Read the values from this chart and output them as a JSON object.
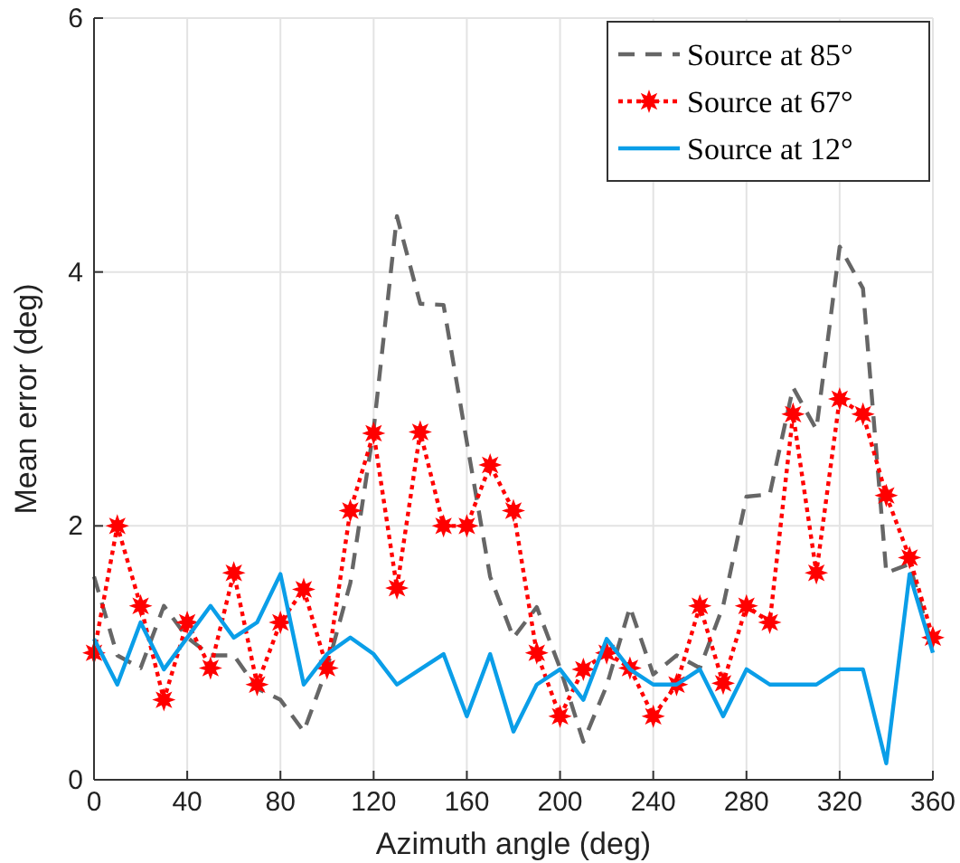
{
  "chart_data": {
    "type": "line",
    "xlabel": "Azimuth angle (deg)",
    "ylabel": "Mean error (deg)",
    "x": [
      0,
      10,
      20,
      30,
      40,
      50,
      60,
      70,
      80,
      90,
      100,
      110,
      120,
      130,
      140,
      150,
      160,
      170,
      180,
      190,
      200,
      210,
      220,
      230,
      240,
      250,
      260,
      270,
      280,
      290,
      300,
      310,
      320,
      330,
      340,
      350,
      360
    ],
    "xlim": [
      0,
      360
    ],
    "xticks": [
      0,
      40,
      80,
      120,
      160,
      200,
      240,
      280,
      320,
      360
    ],
    "ylim": [
      0,
      6
    ],
    "yticks": [
      0,
      2,
      4,
      6
    ],
    "grid": true,
    "legend": "top right",
    "series": [
      {
        "name": "Source at 85°",
        "color": "#666666",
        "line_style": "dashed",
        "marker": "none",
        "values": [
          1.6,
          0.98,
          0.88,
          1.37,
          1.12,
          0.98,
          0.98,
          0.72,
          0.63,
          0.38,
          0.88,
          1.55,
          2.76,
          4.44,
          3.75,
          3.74,
          2.66,
          1.6,
          1.12,
          1.36,
          0.88,
          0.3,
          0.74,
          1.36,
          0.83,
          0.98,
          0.88,
          1.37,
          2.23,
          2.25,
          3.09,
          2.76,
          4.2,
          3.87,
          1.63,
          1.7,
          1.03
        ]
      },
      {
        "name": "Source at 67°",
        "color": "#ff0000",
        "line_style": "dotted",
        "marker": "star",
        "values": [
          1.0,
          2.0,
          1.37,
          0.63,
          1.24,
          0.88,
          1.63,
          0.75,
          1.24,
          1.5,
          0.88,
          2.12,
          2.73,
          1.51,
          2.74,
          2.0,
          2.0,
          2.48,
          2.12,
          1.0,
          0.5,
          0.87,
          1.0,
          0.88,
          0.5,
          0.75,
          1.37,
          0.76,
          1.37,
          1.24,
          2.88,
          1.63,
          3.0,
          2.88,
          2.24,
          1.75,
          1.12
        ]
      },
      {
        "name": "Source at 12°",
        "color": "#0a9ee8",
        "line_style": "solid",
        "marker": "none",
        "values": [
          1.11,
          0.75,
          1.24,
          0.87,
          1.12,
          1.37,
          1.12,
          1.24,
          1.62,
          0.75,
          0.99,
          1.12,
          0.99,
          0.75,
          0.87,
          0.99,
          0.5,
          0.99,
          0.38,
          0.75,
          0.87,
          0.63,
          1.11,
          0.87,
          0.75,
          0.75,
          0.87,
          0.5,
          0.87,
          0.75,
          0.75,
          0.75,
          0.87,
          0.87,
          0.13,
          1.62,
          1.0
        ]
      }
    ]
  }
}
